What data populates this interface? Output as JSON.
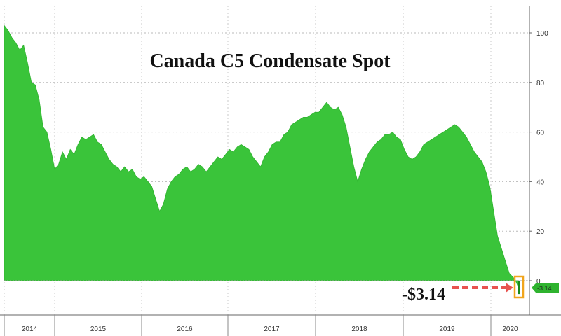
{
  "chart_data": {
    "type": "area",
    "title": "Canada C5 Condensate Spot",
    "xlabel": "",
    "ylabel": "",
    "ylim": [
      -9,
      112
    ],
    "yticks": [
      0,
      20,
      40,
      60,
      80,
      100
    ],
    "year_labels": [
      "2014",
      "2015",
      "2016",
      "2017",
      "2018",
      "2019",
      "2020"
    ],
    "grid": true,
    "series": [
      {
        "values": [
          [
            2014.0,
            103
          ],
          [
            2014.04,
            101
          ],
          [
            2014.08,
            98
          ],
          [
            2014.12,
            96
          ],
          [
            2014.16,
            93
          ],
          [
            2014.2,
            95
          ],
          [
            2014.24,
            88
          ],
          [
            2014.28,
            80
          ],
          [
            2014.32,
            79
          ],
          [
            2014.36,
            73
          ],
          [
            2014.4,
            62
          ],
          [
            2014.44,
            60
          ],
          [
            2014.48,
            53
          ],
          [
            2014.52,
            45
          ],
          [
            2014.56,
            47
          ],
          [
            2014.6,
            52
          ],
          [
            2014.64,
            49
          ],
          [
            2014.68,
            53
          ],
          [
            2014.72,
            51
          ],
          [
            2014.76,
            55
          ],
          [
            2014.8,
            58
          ],
          [
            2014.84,
            57
          ],
          [
            2014.88,
            58
          ],
          [
            2014.92,
            59
          ],
          [
            2014.96,
            56
          ],
          [
            2015.0,
            55
          ],
          [
            2015.04,
            52
          ],
          [
            2015.08,
            49
          ],
          [
            2015.12,
            47
          ],
          [
            2015.16,
            46
          ],
          [
            2015.2,
            44
          ],
          [
            2015.24,
            46
          ],
          [
            2015.28,
            44
          ],
          [
            2015.32,
            45
          ],
          [
            2015.36,
            42
          ],
          [
            2015.4,
            41
          ],
          [
            2015.44,
            42
          ],
          [
            2015.48,
            40
          ],
          [
            2015.52,
            38
          ],
          [
            2015.56,
            33
          ],
          [
            2015.6,
            28
          ],
          [
            2015.64,
            31
          ],
          [
            2015.68,
            37
          ],
          [
            2015.72,
            40
          ],
          [
            2015.76,
            42
          ],
          [
            2015.8,
            43
          ],
          [
            2015.84,
            45
          ],
          [
            2015.88,
            46
          ],
          [
            2015.92,
            44
          ],
          [
            2015.96,
            45
          ],
          [
            2016.0,
            47
          ],
          [
            2016.04,
            46
          ],
          [
            2016.08,
            44
          ],
          [
            2016.12,
            46
          ],
          [
            2016.16,
            48
          ],
          [
            2016.2,
            50
          ],
          [
            2016.24,
            49
          ],
          [
            2016.28,
            51
          ],
          [
            2016.32,
            53
          ],
          [
            2016.36,
            52
          ],
          [
            2016.4,
            54
          ],
          [
            2016.44,
            55
          ],
          [
            2016.48,
            54
          ],
          [
            2016.52,
            53
          ],
          [
            2016.56,
            50
          ],
          [
            2016.6,
            48
          ],
          [
            2016.64,
            46
          ],
          [
            2016.68,
            50
          ],
          [
            2016.72,
            52
          ],
          [
            2016.76,
            55
          ],
          [
            2016.8,
            56
          ],
          [
            2016.84,
            56
          ],
          [
            2016.88,
            59
          ],
          [
            2016.92,
            60
          ],
          [
            2016.96,
            63
          ],
          [
            2017.0,
            64
          ],
          [
            2017.04,
            65
          ],
          [
            2017.08,
            66
          ],
          [
            2017.12,
            66
          ],
          [
            2017.16,
            67
          ],
          [
            2017.2,
            68
          ],
          [
            2017.24,
            68
          ],
          [
            2017.28,
            70
          ],
          [
            2017.32,
            72
          ],
          [
            2017.36,
            70
          ],
          [
            2017.4,
            69
          ],
          [
            2017.44,
            70
          ],
          [
            2017.48,
            67
          ],
          [
            2017.52,
            62
          ],
          [
            2017.56,
            54
          ],
          [
            2017.6,
            46
          ],
          [
            2017.64,
            40
          ],
          [
            2017.68,
            45
          ],
          [
            2017.72,
            49
          ],
          [
            2017.76,
            52
          ],
          [
            2017.8,
            54
          ],
          [
            2017.84,
            56
          ],
          [
            2017.88,
            57
          ],
          [
            2017.92,
            59
          ],
          [
            2017.96,
            59
          ],
          [
            2018.0,
            60
          ],
          [
            2018.04,
            58
          ],
          [
            2018.08,
            57
          ],
          [
            2018.12,
            53
          ],
          [
            2018.16,
            50
          ],
          [
            2018.2,
            49
          ],
          [
            2018.24,
            50
          ],
          [
            2018.28,
            52
          ],
          [
            2018.32,
            55
          ],
          [
            2018.36,
            56
          ],
          [
            2018.4,
            57
          ],
          [
            2018.44,
            58
          ],
          [
            2018.48,
            59
          ],
          [
            2018.52,
            60
          ],
          [
            2018.56,
            61
          ],
          [
            2018.6,
            62
          ],
          [
            2018.64,
            63
          ],
          [
            2018.68,
            62
          ],
          [
            2018.72,
            60
          ],
          [
            2018.76,
            58
          ],
          [
            2018.8,
            55
          ],
          [
            2018.84,
            52
          ],
          [
            2018.88,
            50
          ],
          [
            2018.92,
            48
          ],
          [
            2018.96,
            44
          ],
          [
            2019.0,
            38
          ],
          [
            2019.04,
            28
          ],
          [
            2019.08,
            18
          ],
          [
            2019.12,
            13
          ],
          [
            2019.16,
            8
          ],
          [
            2019.2,
            3
          ],
          [
            2019.26,
            0.5
          ],
          [
            2019.3,
            -3.14
          ]
        ]
      }
    ],
    "annotation": {
      "text": "-$3.14",
      "value": -3.14
    },
    "last_value_label": "-3.14",
    "colors": {
      "fill": "#3ac43a",
      "line": "#2fb32f",
      "annotation_arrow": "#e8534f",
      "highlight_box": "#f1a51c",
      "badge_fill": "#2fb32f"
    }
  }
}
